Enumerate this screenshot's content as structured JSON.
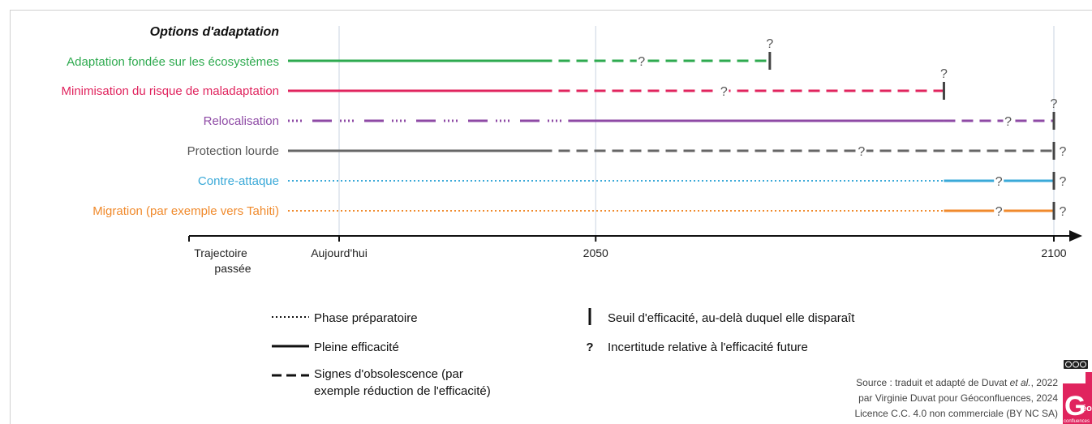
{
  "chart_data": {
    "type": "timeline",
    "title": "Options d'adaptation",
    "axis": {
      "past_label_line1": "Trajectoire",
      "past_label_line2": "passée",
      "ticks": [
        {
          "label": "Aujourd'hui",
          "year": 2022
        },
        {
          "label": "2050",
          "year": 2050
        },
        {
          "label": "2100",
          "year": 2100
        }
      ],
      "range": [
        2016,
        2103
      ]
    },
    "rows": [
      {
        "label": "Adaptation fondée sur les écosystèmes",
        "color": "#2eaa4f",
        "segments": [
          {
            "style": "solid",
            "from": 2016,
            "to": 2044
          },
          {
            "style": "dashed",
            "from": 2044,
            "to": 2069
          }
        ],
        "q_on_line": 2055,
        "threshold": 2069,
        "q_above_threshold": true,
        "q_after_threshold": false
      },
      {
        "label": "Minimisation du risque de maladaptation",
        "color": "#e0245e",
        "segments": [
          {
            "style": "solid",
            "from": 2016,
            "to": 2044
          },
          {
            "style": "dashed",
            "from": 2044,
            "to": 2088
          }
        ],
        "q_on_line": 2064,
        "threshold": 2088,
        "q_above_threshold": true,
        "q_after_threshold": false
      },
      {
        "label": "Relocalisation",
        "color": "#8e4aa5",
        "segments": [
          {
            "style": "dotdash",
            "from": 2016,
            "to": 2047
          },
          {
            "style": "solid",
            "from": 2047,
            "to": 2088
          },
          {
            "style": "dashed",
            "from": 2088,
            "to": 2100
          }
        ],
        "q_on_line": 2095,
        "threshold": 2100,
        "q_above_threshold": true,
        "q_after_threshold": false
      },
      {
        "label": "Protection lourde",
        "color": "#666666",
        "segments": [
          {
            "style": "solid",
            "from": 2016,
            "to": 2044
          },
          {
            "style": "dashed",
            "from": 2044,
            "to": 2100
          }
        ],
        "q_on_line": 2079,
        "threshold": 2100,
        "q_above_threshold": false,
        "q_after_threshold": true
      },
      {
        "label": "Contre-attaque",
        "color": "#3aa9d8",
        "segments": [
          {
            "style": "dotted",
            "from": 2016,
            "to": 2088
          },
          {
            "style": "solid",
            "from": 2088,
            "to": 2100
          }
        ],
        "q_on_line": 2094,
        "threshold": 2100,
        "q_above_threshold": false,
        "q_after_threshold": true
      },
      {
        "label": "Migration (par exemple vers Tahiti)",
        "color": "#f08a2c",
        "segments": [
          {
            "style": "dotted",
            "from": 2016,
            "to": 2088
          },
          {
            "style": "solid",
            "from": 2088,
            "to": 2100
          }
        ],
        "q_on_line": 2094,
        "threshold": 2100,
        "q_above_threshold": false,
        "q_after_threshold": true
      }
    ]
  },
  "legend": {
    "dotted": "Phase préparatoire",
    "solid": "Pleine efficacité",
    "dashed_line1": "Signes d'obsolescence (par",
    "dashed_line2": "exemple réduction de l'efficacité)",
    "threshold": "Seuil d'efficacité, au-delà duquel elle disparaît",
    "uncertainty": "Incertitude relative à l'efficacité future",
    "q_symbol": "?"
  },
  "source": {
    "line1_prefix": "Source : traduit et adapté de Duvat ",
    "line1_italic": "et al.",
    "line1_suffix": ", 2022",
    "line2": "par Virginie Duvat pour Géoconfluences, 2024",
    "line3": "Licence C.C. 4.0 non commerciale (BY NC SA)"
  },
  "logo": {
    "text": "G",
    "small": "éo",
    "tiny": "confluences",
    "color": "#e0245e"
  },
  "license_badge": "cc"
}
